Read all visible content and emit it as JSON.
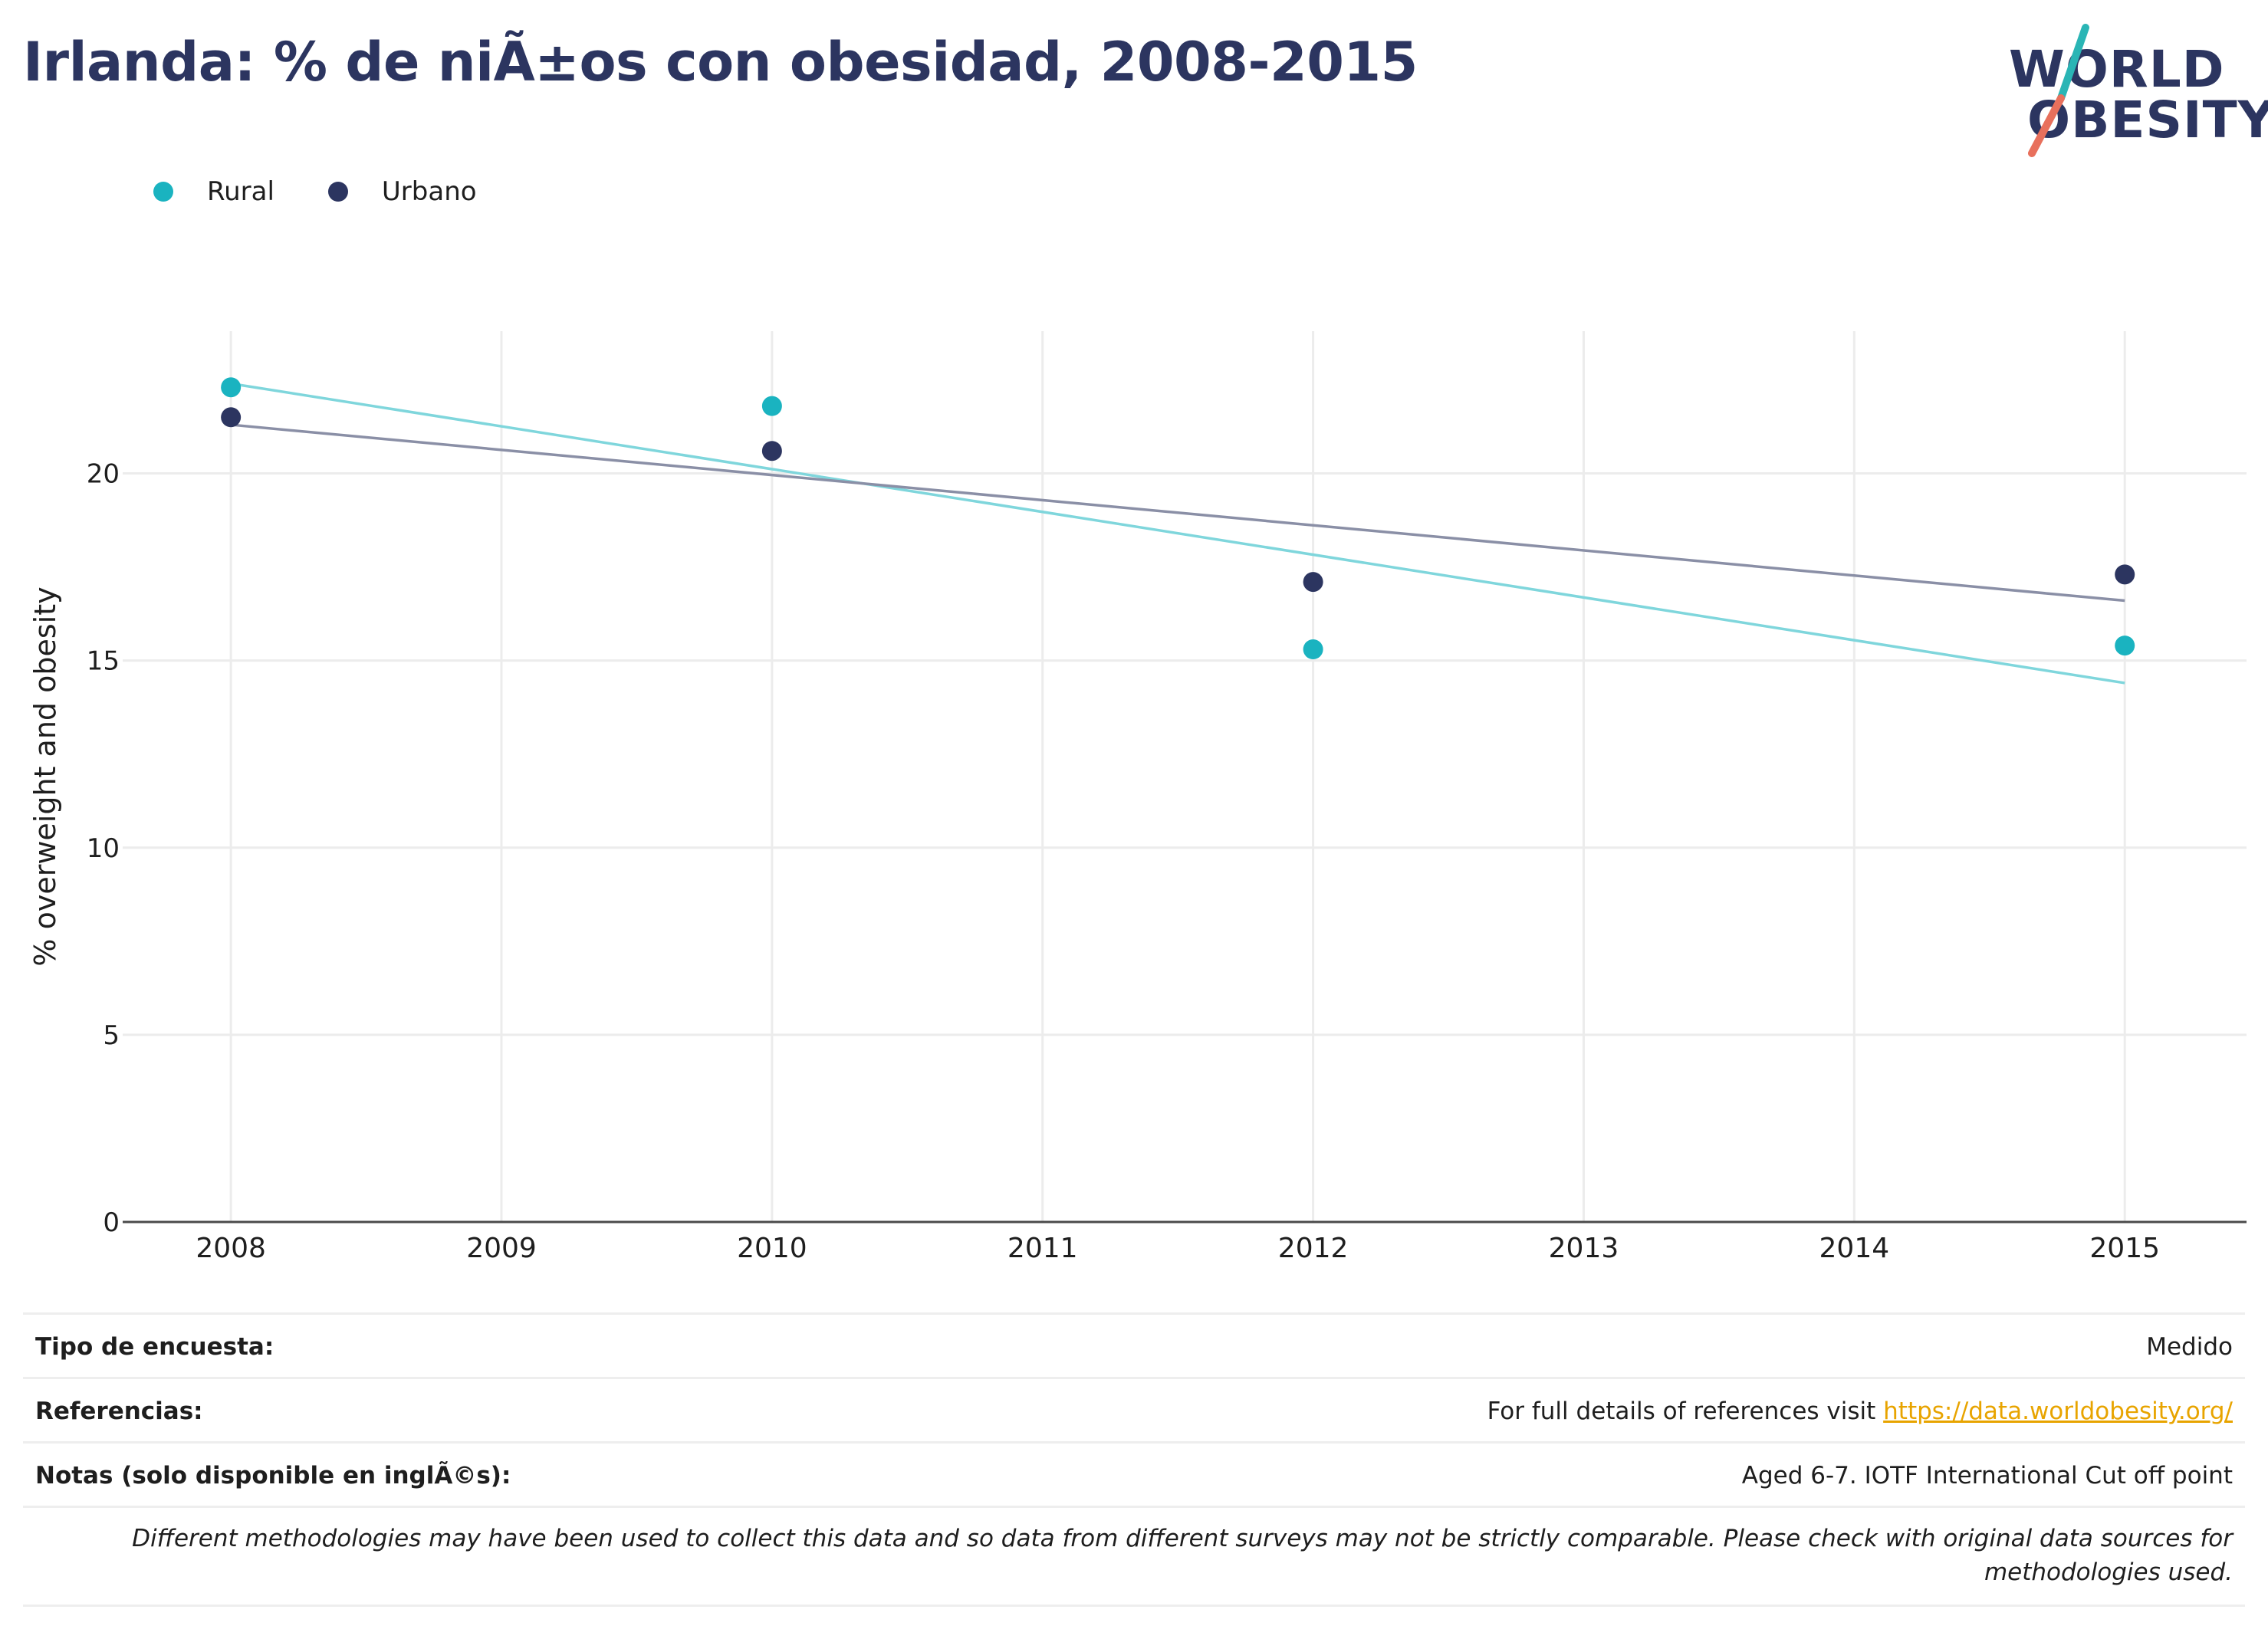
{
  "title": "Irlanda: % de niÃ±os con obesidad, 2008-2015",
  "logo": {
    "line1": "WORLD",
    "line2": "OBESITY",
    "accent_top": "#2ab5b5",
    "accent_bottom": "#e8705c"
  },
  "colors": {
    "rural": "#1ab3c0",
    "urban": "#2c3560",
    "rural_trend": "#7fd6dc",
    "urban_trend": "#8a8fa6",
    "grid": "#ececec",
    "axis": "#4a4a4a"
  },
  "chart_data": {
    "type": "scatter",
    "ylabel": "% overweight and obesity",
    "xlabel": "",
    "x_ticks": [
      "2008",
      "2009",
      "2010",
      "2011",
      "2012",
      "2013",
      "2014",
      "2015"
    ],
    "y_ticks": [
      "0",
      "5",
      "10",
      "15",
      "20"
    ],
    "xlim": [
      2007.6,
      2015.45
    ],
    "ylim": [
      0,
      23.8
    ],
    "grid": true,
    "legend_position": "top-left",
    "series": [
      {
        "name": "Rural",
        "key": "rural",
        "points": [
          {
            "x": 2008,
            "y": 22.3
          },
          {
            "x": 2010,
            "y": 21.8
          },
          {
            "x": 2012,
            "y": 15.3
          },
          {
            "x": 2015,
            "y": 15.4
          }
        ],
        "trend": [
          {
            "x": 2008,
            "y": 22.4
          },
          {
            "x": 2015,
            "y": 14.4
          }
        ]
      },
      {
        "name": "Urbano",
        "key": "urban",
        "points": [
          {
            "x": 2008,
            "y": 21.5
          },
          {
            "x": 2010,
            "y": 20.6
          },
          {
            "x": 2012,
            "y": 17.1
          },
          {
            "x": 2015,
            "y": 17.3
          }
        ],
        "trend": [
          {
            "x": 2008,
            "y": 21.3
          },
          {
            "x": 2015,
            "y": 16.6
          }
        ]
      }
    ]
  },
  "meta": {
    "survey_label": "Tipo de encuesta:",
    "survey_value": "Medido",
    "refs_label": "Referencias:",
    "refs_text": "For full details of references visit ",
    "refs_link": "https://data.worldobesity.org/",
    "notes_label": "Notas (solo disponible en inglÃ©s):",
    "notes_value": "Aged 6-7. IOTF International Cut off point",
    "disclaimer_line1": "Different methodologies may have been used to collect this data and so data from different surveys may not be strictly comparable. Please check with original data sources for",
    "disclaimer_line2": "methodologies used."
  }
}
